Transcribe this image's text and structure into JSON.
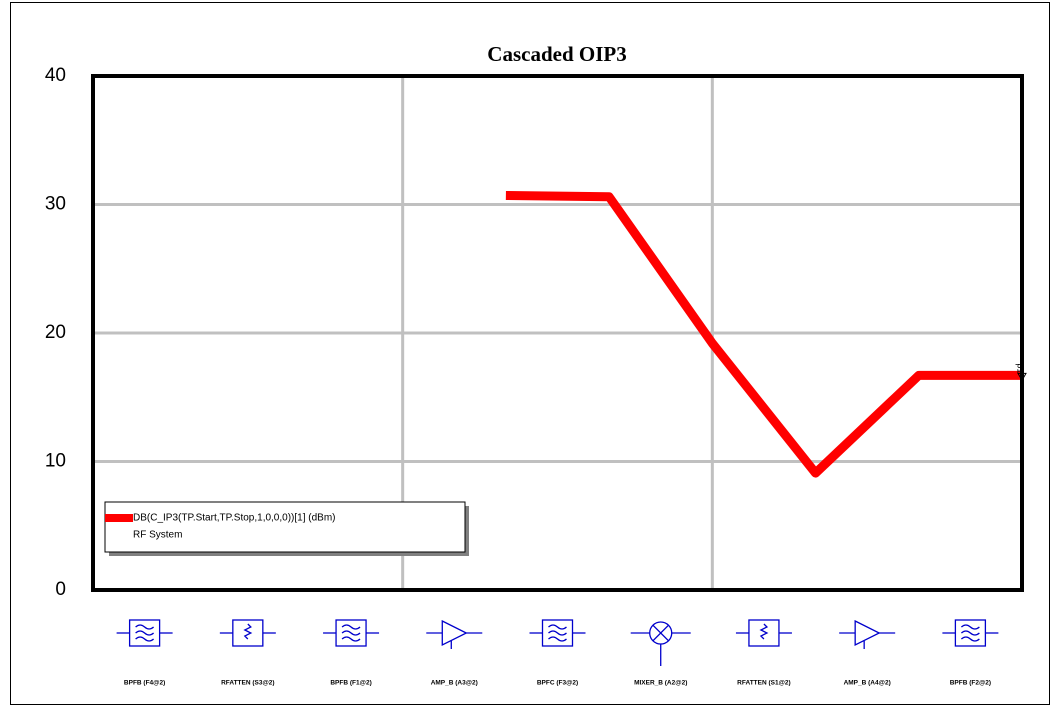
{
  "chart_data": {
    "type": "line",
    "title": "Cascaded OIP3",
    "x": [
      4,
      5,
      6,
      7,
      8,
      9
    ],
    "series": [
      {
        "name": "DB(C_IP3(TP.Start,TP.Stop,1,0,0,0))[1] (dBm)",
        "source": "RF System",
        "color": "#ff0000",
        "values": [
          30.7,
          30.6,
          19.2,
          9.1,
          16.7,
          16.7
        ]
      }
    ],
    "xlim": [
      0,
      9
    ],
    "xticks": [
      0,
      3,
      6,
      9
    ],
    "ylim": [
      0,
      40
    ],
    "yticks": [
      0,
      10,
      20,
      30,
      40
    ],
    "grid": true,
    "marker": "p1",
    "components": [
      "BPFB (F4@2)",
      "RFATTEN (S3@2)",
      "BPFB (F1@2)",
      "AMP_B (A3@2)",
      "BPFC (F3@2)",
      "MIXER_B (A2@2)",
      "RFATTEN (S1@2)",
      "AMP_B (A4@2)",
      "BPFB (F2@2)"
    ]
  }
}
